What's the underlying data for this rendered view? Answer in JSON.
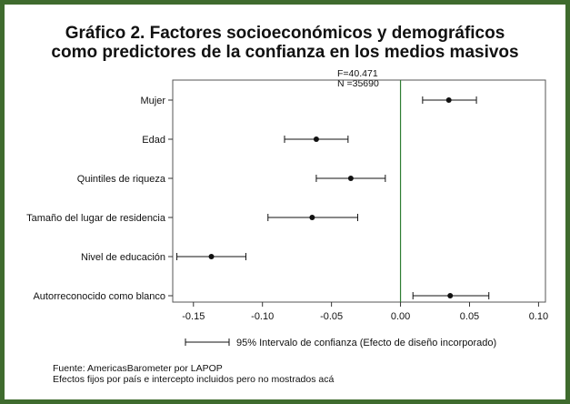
{
  "chart_data": {
    "type": "scatter",
    "title": "Gráfico 2. Factores socioeconómicos y demográficos como predictores de la confianza en los medios masivos",
    "title_lines": [
      "Gráfico 2. Factores socioeconómicos y demográficos",
      "como predictores de la confianza en los medios masivos"
    ],
    "stats": [
      "F=40.471",
      "N =35690"
    ],
    "xlim": [
      -0.165,
      0.105
    ],
    "x_ticks": [
      -0.15,
      -0.1,
      -0.05,
      0.0,
      0.05,
      0.1
    ],
    "x_tick_labels": [
      "-0.15",
      "-0.10",
      "-0.05",
      "0.00",
      "0.05",
      "0.10"
    ],
    "reference_line": 0.0,
    "reference_line_color": "#2e7d32",
    "series": [
      {
        "points": [
          {
            "label": "Mujer",
            "estimate": 0.035,
            "ci_low": 0.016,
            "ci_high": 0.055
          },
          {
            "label": "Edad",
            "estimate": -0.061,
            "ci_low": -0.084,
            "ci_high": -0.038
          },
          {
            "label": "Quintiles de riqueza",
            "estimate": -0.036,
            "ci_low": -0.061,
            "ci_high": -0.011
          },
          {
            "label": "Tamaño del lugar de residencia",
            "estimate": -0.064,
            "ci_low": -0.096,
            "ci_high": -0.031
          },
          {
            "label": "Nivel de educación",
            "estimate": -0.137,
            "ci_low": -0.162,
            "ci_high": -0.112
          },
          {
            "label": "Autorreconocido como blanco",
            "estimate": 0.036,
            "ci_low": 0.009,
            "ci_high": 0.064
          }
        ]
      }
    ],
    "legend": {
      "label": "95% Intervalo de confianza (Efecto de diseño incorporado)",
      "placement": "bottom"
    },
    "notes": [
      "Fuente: AmericasBarometer por LAPOP",
      "Efectos fijos por país e intercepto incluidos pero no mostrados acá"
    ]
  }
}
